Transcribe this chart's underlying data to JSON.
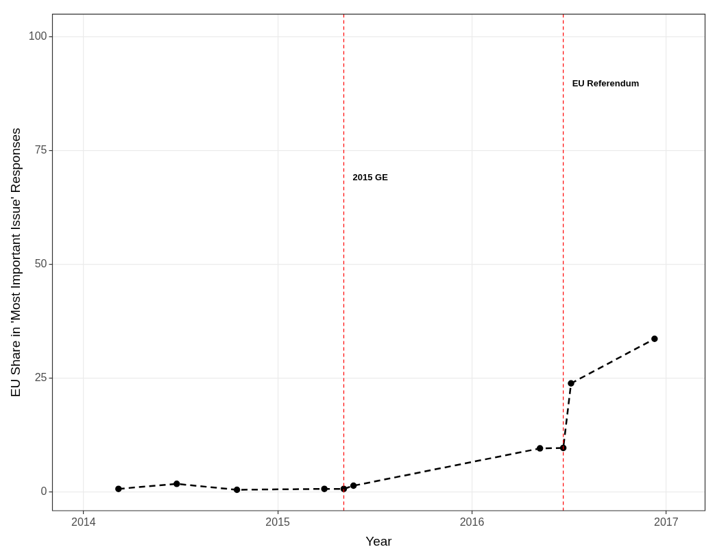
{
  "chart_data": {
    "type": "line",
    "xlabel": "Year",
    "ylabel": "EU Share in 'Most Important Issue' Responses",
    "x": [
      2014.18,
      2014.48,
      2014.79,
      2015.24,
      2015.34,
      2015.39,
      2016.35,
      2016.47,
      2016.51,
      2016.94
    ],
    "series": [
      {
        "color": "#000000",
        "values": [
          0.6,
          1.7,
          0.4,
          0.6,
          0.6,
          1.3,
          9.5,
          9.6,
          23.8,
          33.6
        ]
      }
    ],
    "xlim": [
      2013.84,
      2017.2
    ],
    "xticks": [
      2014,
      2015,
      2016,
      2017
    ],
    "ylim": [
      -4.2,
      105
    ],
    "yticks": [
      0,
      25,
      50,
      75,
      100
    ],
    "ref_lines": [
      {
        "axis": "x",
        "value": 2015.34,
        "color": "#ff0000",
        "line_style": "dashed",
        "label": "2015 GE"
      },
      {
        "axis": "x",
        "value": 2016.47,
        "color": "#ff0000",
        "line_style": "dashed",
        "label": "EU Referendum"
      }
    ],
    "grid": true,
    "legend": false,
    "marker": "circle",
    "line_style": "dashed"
  }
}
